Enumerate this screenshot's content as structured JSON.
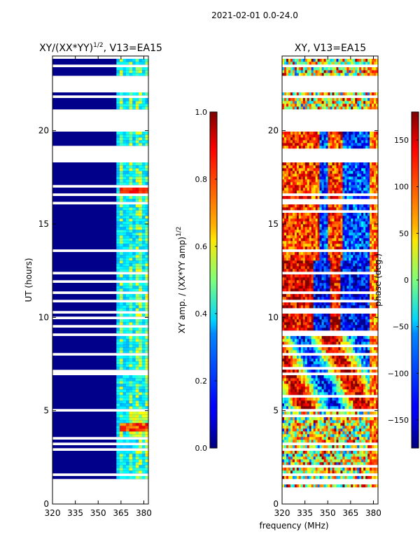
{
  "figure_title": "2021-02-01 0.0-24.0",
  "xlabel": "frequency (MHz)",
  "colors": {
    "low": "#00008b",
    "mid": "#7fffaa",
    "high": "#8b0000",
    "axis": "#000000"
  },
  "chart_data": [
    {
      "type": "heatmap",
      "title_main": "XY/(XX*YY)",
      "title_sup": "1/2",
      "title_rest": ", V13=EA15",
      "xlabel": "",
      "ylabel": "UT (hours)",
      "xlim": [
        320,
        383
      ],
      "ylim": [
        0,
        24
      ],
      "xticks": [
        "320",
        "335",
        "350",
        "365",
        "380"
      ],
      "xtick_values": [
        320,
        335,
        350,
        365,
        380
      ],
      "yticks": [
        "0",
        "5",
        "10",
        "15",
        "20"
      ],
      "ytick_values": [
        0,
        5,
        10,
        15,
        20
      ],
      "colorbar": {
        "label_main": "XY amp. / (XX*YY amp)",
        "label_sup": "1/2",
        "range": [
          0.0,
          1.0
        ],
        "ticks": [
          "0.0",
          "0.2",
          "0.4",
          "0.6",
          "0.8",
          "1.0"
        ],
        "tick_values": [
          0.0,
          0.2,
          0.4,
          0.6,
          0.8,
          1.0
        ]
      }
    },
    {
      "type": "heatmap",
      "title_main": "XY, V13=EA15",
      "xlabel": "frequency (MHz)",
      "ylabel": "",
      "xlim": [
        320,
        383
      ],
      "ylim": [
        0,
        24
      ],
      "xticks": [
        "320",
        "335",
        "350",
        "365",
        "380"
      ],
      "xtick_values": [
        320,
        335,
        350,
        365,
        380
      ],
      "yticks": [
        "0",
        "5",
        "10",
        "15",
        "20"
      ],
      "ytick_values": [
        0,
        5,
        10,
        15,
        20
      ],
      "colorbar": {
        "label_main": "phase (deg.)",
        "range": [
          -180,
          180
        ],
        "ticks": [
          "−150",
          "−100",
          "−50",
          "0",
          "50",
          "100",
          "150"
        ],
        "tick_values": [
          -150,
          -100,
          -50,
          0,
          50,
          100,
          150
        ]
      }
    }
  ]
}
